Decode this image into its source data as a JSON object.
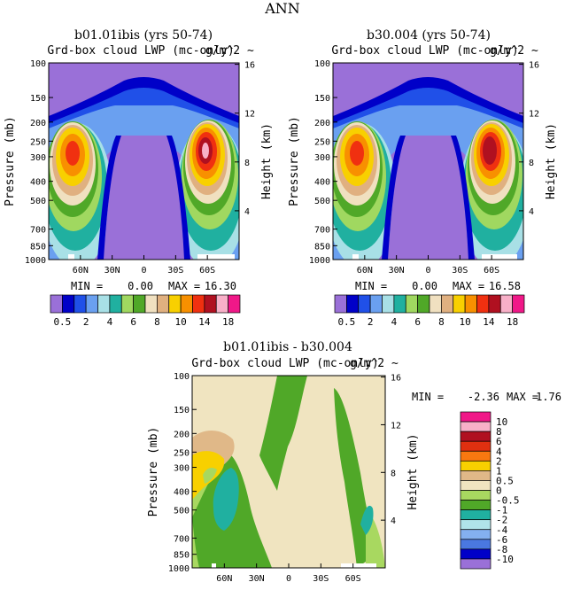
{
  "page_title": "ANN",
  "palette_abs": [
    "#9a70d8",
    "#0000c8",
    "#2050e8",
    "#6aa0f0",
    "#a8e0e6",
    "#20b0a0",
    "#a0d860",
    "#50a828",
    "#f0e0c0",
    "#e0b080",
    "#f8d000",
    "#f89000",
    "#f03010",
    "#b01020",
    "#f8b0c8",
    "#f01888"
  ],
  "palette_diff": [
    "#9a70d8",
    "#0000c8",
    "#4a78e0",
    "#84b0f0",
    "#b0e4ea",
    "#20b0a0",
    "#50a828",
    "#a8d860",
    "#f0e4c0",
    "#e0b888",
    "#f8d000",
    "#f87810",
    "#e03010",
    "#b01020",
    "#f8b0c8",
    "#f01888"
  ],
  "chart_data": [
    {
      "type": "heatmap",
      "title": "b01.01ibis (yrs 50-74)",
      "subtitle": "Grd-box cloud LWP (mc-only)",
      "overlay": "g/m^2 ~",
      "ylabel": "Pressure (mb)",
      "ylabel_right": "Height (km)",
      "pressure_ticks": [
        "100",
        "150",
        "200",
        "250",
        "300",
        "400",
        "500",
        "700",
        "850",
        "1000"
      ],
      "height_ticks": [
        "16",
        "12",
        "8",
        "4"
      ],
      "lat_ticks": [
        "60N",
        "30N",
        "0",
        "30S",
        "60S"
      ],
      "min_label": "MIN =",
      "min": "0.00",
      "max_label": "MAX =",
      "max": "16.30",
      "colorbar_labels": [
        "0.5",
        "2",
        "4",
        "6",
        "8",
        "10",
        "14",
        "18"
      ]
    },
    {
      "type": "heatmap",
      "title": "b30.004 (yrs 50-74)",
      "subtitle": "Grd-box cloud LWP (mc-only)",
      "overlay": "g/m^2 ~",
      "ylabel": "Pressure (mb)",
      "ylabel_right": "Height (km)",
      "pressure_ticks": [
        "100",
        "150",
        "200",
        "250",
        "300",
        "400",
        "500",
        "700",
        "850",
        "1000"
      ],
      "height_ticks": [
        "16",
        "12",
        "8",
        "4"
      ],
      "lat_ticks": [
        "60N",
        "30N",
        "0",
        "30S",
        "60S"
      ],
      "min_label": "MIN =",
      "min": "0.00",
      "max_label": "MAX =",
      "max": "16.58",
      "colorbar_labels": [
        "0.5",
        "2",
        "4",
        "6",
        "8",
        "10",
        "14",
        "18"
      ]
    },
    {
      "type": "heatmap",
      "title": "b01.01ibis - b30.004",
      "subtitle": "Grd-box cloud LWP (mc-only)",
      "overlay": "g/m^2 ~",
      "ylabel": "Pressure (mb)",
      "ylabel_right": "Height (km)",
      "pressure_ticks": [
        "100",
        "150",
        "200",
        "250",
        "300",
        "400",
        "500",
        "700",
        "850",
        "1000"
      ],
      "height_ticks": [
        "16",
        "12",
        "8",
        "4"
      ],
      "lat_ticks": [
        "60N",
        "30N",
        "0",
        "30S",
        "60S"
      ],
      "min_label": "MIN =",
      "min": "-2.36",
      "max_label": "MAX =",
      "max": "1.76",
      "colorbar_labels": [
        "10",
        "8",
        "6",
        "4",
        "2",
        "1",
        "0.5",
        "0",
        "-0.5",
        "-1",
        "-2",
        "-4",
        "-6",
        "-8",
        "-10"
      ]
    }
  ]
}
